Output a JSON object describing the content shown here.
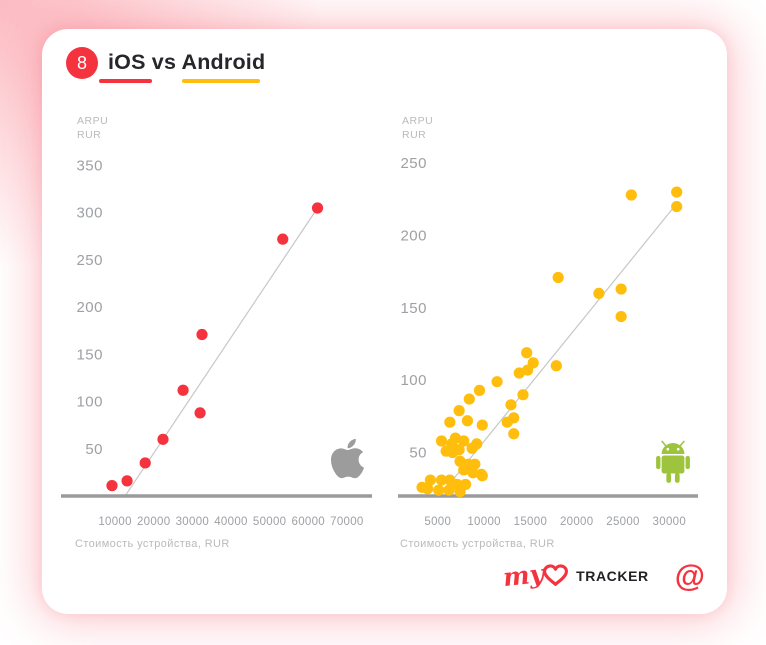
{
  "page": {
    "badge": "8",
    "title": "iOS vs Android",
    "brand": {
      "script": "my",
      "name": "TRACKER",
      "at": "@"
    },
    "colors": {
      "red": "#F5333F",
      "yellow": "#FFBD0D",
      "green": "#9EC43D",
      "title": "#26262B",
      "axis": "#9A9A9A",
      "trend": "#C7C7C7",
      "tick": "#9EA0A4",
      "caption": "#B9BABE",
      "glow": "#F7556A"
    }
  },
  "chart_data": [
    {
      "type": "scatter",
      "platform": "iOS",
      "platform_icon": "apple-logo",
      "ylabel": "ARPU\nRUR",
      "xlabel": "Стоимость устройства, RUR",
      "point_color": "#F5333F",
      "grid": false,
      "x_ticks": [
        10000,
        20000,
        30000,
        40000,
        50000,
        60000,
        70000
      ],
      "y_ticks": [
        50,
        100,
        150,
        200,
        250,
        300,
        350
      ],
      "xlim": [
        -4000,
        76500
      ],
      "ylim": [
        0,
        377
      ],
      "points": [
        [
          9200,
          11
        ],
        [
          13100,
          16
        ],
        [
          17800,
          35
        ],
        [
          22400,
          60
        ],
        [
          27600,
          112
        ],
        [
          32000,
          88
        ],
        [
          32500,
          171
        ],
        [
          53400,
          272
        ],
        [
          62400,
          305
        ]
      ],
      "trendline": [
        [
          12600,
          0
        ],
        [
          62400,
          305
        ]
      ]
    },
    {
      "type": "scatter",
      "platform": "Android",
      "platform_icon": "android-robot",
      "ylabel": "ARPU\nRUR",
      "xlabel": "Стоимость устройства, RUR",
      "point_color": "#FFBD0D",
      "grid": false,
      "x_ticks": [
        5000,
        10000,
        15000,
        20000,
        25000,
        30000
      ],
      "y_ticks": [
        50,
        100,
        150,
        200,
        250
      ],
      "xlim": [
        700,
        33100
      ],
      "ylim": [
        20,
        266
      ],
      "points": [
        [
          25900,
          228
        ],
        [
          30800,
          230
        ],
        [
          30800,
          220
        ],
        [
          18000,
          171
        ],
        [
          22400,
          160
        ],
        [
          24800,
          163
        ],
        [
          24800,
          144
        ],
        [
          14600,
          119
        ],
        [
          15300,
          112
        ],
        [
          17800,
          110
        ],
        [
          13800,
          105
        ],
        [
          14700,
          107
        ],
        [
          11400,
          99
        ],
        [
          8400,
          87
        ],
        [
          9500,
          93
        ],
        [
          12900,
          83
        ],
        [
          13200,
          74
        ],
        [
          14200,
          90
        ],
        [
          7300,
          79
        ],
        [
          8200,
          72
        ],
        [
          6300,
          71
        ],
        [
          9800,
          69
        ],
        [
          6900,
          60
        ],
        [
          5400,
          58
        ],
        [
          7800,
          58
        ],
        [
          12500,
          71
        ],
        [
          13200,
          63
        ],
        [
          6500,
          56
        ],
        [
          7300,
          52
        ],
        [
          6600,
          50
        ],
        [
          5900,
          51
        ],
        [
          8700,
          53
        ],
        [
          9200,
          56
        ],
        [
          7400,
          44
        ],
        [
          8300,
          42
        ],
        [
          9000,
          42
        ],
        [
          7800,
          38
        ],
        [
          8800,
          36
        ],
        [
          9700,
          35
        ],
        [
          6300,
          31
        ],
        [
          5400,
          31
        ],
        [
          7100,
          28
        ],
        [
          8000,
          28
        ],
        [
          4200,
          31
        ],
        [
          3900,
          25
        ],
        [
          5100,
          24
        ],
        [
          6200,
          24
        ],
        [
          7400,
          23
        ],
        [
          3300,
          26
        ],
        [
          9800,
          34
        ]
      ],
      "trendline": [
        [
          5200,
          20
        ],
        [
          30800,
          222
        ]
      ]
    }
  ]
}
